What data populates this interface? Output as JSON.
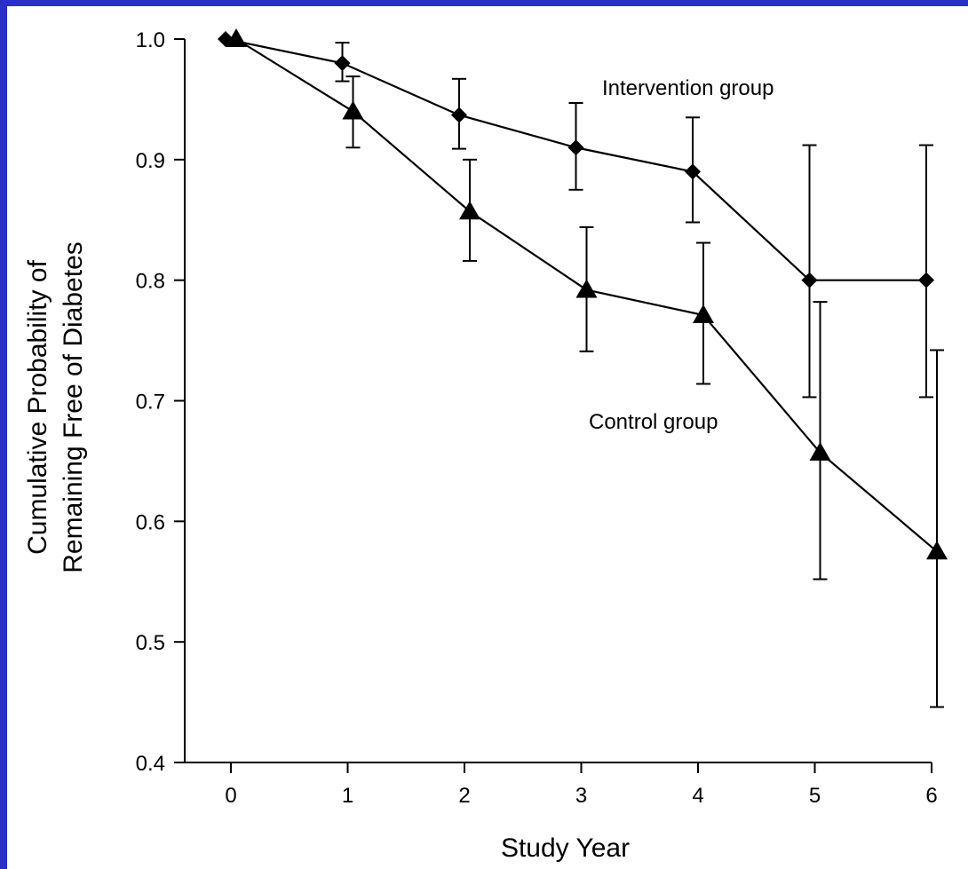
{
  "chart_data": {
    "type": "line",
    "title": "",
    "xlabel": "Study Year",
    "ylabel_lines": [
      "Cumulative Probability of",
      "Remaining Free of Diabetes"
    ],
    "xlim": [
      0,
      6
    ],
    "ylim": [
      0.4,
      1.0
    ],
    "x_ticks": [
      0,
      1,
      2,
      3,
      4,
      5,
      6
    ],
    "y_ticks": [
      0.4,
      0.5,
      0.6,
      0.7,
      0.8,
      0.9,
      1.0
    ],
    "y_tick_labels": [
      "0.4",
      "0.5",
      "0.6",
      "0.7",
      "0.8",
      "0.9",
      "1.0"
    ],
    "grid": false,
    "line_color": "#000000",
    "series": [
      {
        "name": "Intervention group",
        "marker": "diamond",
        "x": [
          0,
          1,
          2,
          3,
          4,
          5,
          6
        ],
        "y": [
          1.0,
          0.98,
          0.937,
          0.91,
          0.89,
          0.8,
          0.8
        ],
        "err_low": [
          null,
          0.965,
          0.909,
          0.875,
          0.848,
          0.703,
          0.703
        ],
        "err_high": [
          null,
          0.997,
          0.967,
          0.947,
          0.935,
          0.912,
          0.912
        ]
      },
      {
        "name": "Control group",
        "marker": "triangle",
        "x": [
          0,
          1,
          2,
          3,
          4,
          5,
          6
        ],
        "y": [
          1.0,
          0.94,
          0.857,
          0.792,
          0.771,
          0.657,
          0.575
        ],
        "err_low": [
          null,
          0.91,
          0.816,
          0.741,
          0.714,
          0.552,
          0.446
        ],
        "err_high": [
          null,
          0.969,
          0.9,
          0.844,
          0.831,
          0.782,
          0.742
        ]
      }
    ]
  }
}
